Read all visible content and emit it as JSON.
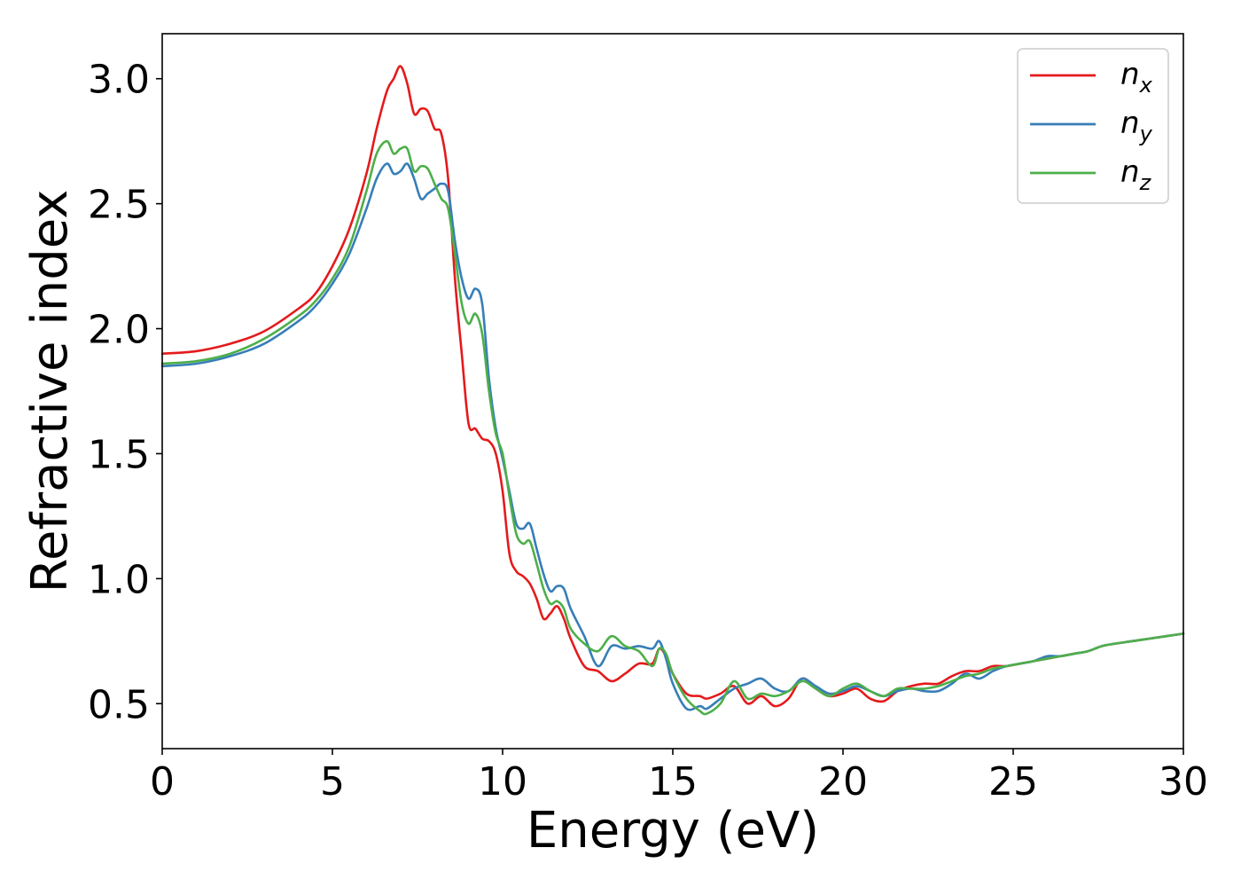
{
  "chart_data": {
    "type": "line",
    "title": "",
    "xlabel": "Energy (eV)",
    "ylabel": "Refractive index",
    "xlim": [
      0,
      30
    ],
    "ylim": [
      0.32,
      3.18
    ],
    "xticks": [
      0,
      5,
      10,
      15,
      20,
      25,
      30
    ],
    "xtick_labels": [
      "0",
      "5",
      "10",
      "15",
      "20",
      "25",
      "30"
    ],
    "yticks": [
      0.5,
      1.0,
      1.5,
      2.0,
      2.5,
      3.0
    ],
    "ytick_labels": [
      "0.5",
      "1.0",
      "1.5",
      "2.0",
      "2.5",
      "3.0"
    ],
    "grid": false,
    "legend_position": "top-right",
    "series": [
      {
        "name": "n_x",
        "legend": {
          "base": "n",
          "sub": "x"
        },
        "color": "#e41a1c",
        "x": [
          0,
          1,
          2,
          3,
          4,
          4.5,
          5,
          5.5,
          6,
          6.3,
          6.6,
          6.8,
          7.0,
          7.2,
          7.4,
          7.6,
          7.8,
          8.0,
          8.2,
          8.4,
          8.6,
          8.8,
          9.0,
          9.2,
          9.4,
          9.6,
          9.8,
          10.0,
          10.2,
          10.4,
          10.6,
          10.8,
          11.0,
          11.2,
          11.4,
          11.6,
          11.8,
          12.0,
          12.4,
          12.8,
          13.2,
          13.6,
          14.0,
          14.4,
          14.6,
          14.8,
          15.0,
          15.4,
          15.8,
          16.0,
          16.4,
          16.8,
          17.2,
          17.6,
          18.0,
          18.4,
          18.8,
          19.2,
          19.6,
          20.0,
          20.4,
          20.8,
          21.2,
          21.6,
          22.0,
          22.4,
          22.8,
          23.2,
          23.6,
          24.0,
          24.4,
          24.8,
          25.2,
          25.6,
          26.0,
          26.4,
          26.8,
          27.2,
          27.6,
          28.0,
          28.5,
          29.0,
          29.5,
          30.0
        ],
        "y": [
          1.9,
          1.91,
          1.94,
          1.99,
          2.08,
          2.14,
          2.25,
          2.4,
          2.62,
          2.8,
          2.95,
          3.0,
          3.05,
          2.98,
          2.86,
          2.88,
          2.87,
          2.8,
          2.78,
          2.6,
          2.2,
          1.9,
          1.62,
          1.6,
          1.56,
          1.55,
          1.5,
          1.35,
          1.1,
          1.03,
          1.01,
          0.98,
          0.92,
          0.84,
          0.86,
          0.89,
          0.84,
          0.76,
          0.65,
          0.63,
          0.59,
          0.62,
          0.66,
          0.66,
          0.72,
          0.69,
          0.62,
          0.54,
          0.53,
          0.52,
          0.54,
          0.57,
          0.5,
          0.53,
          0.49,
          0.52,
          0.6,
          0.56,
          0.53,
          0.54,
          0.56,
          0.52,
          0.51,
          0.55,
          0.57,
          0.58,
          0.58,
          0.61,
          0.63,
          0.63,
          0.65,
          0.65,
          0.66,
          0.67,
          0.68,
          0.69,
          0.7,
          0.71,
          0.73,
          0.74,
          0.75,
          0.76,
          0.77,
          0.78
        ]
      },
      {
        "name": "n_y",
        "legend": {
          "base": "n",
          "sub": "y"
        },
        "color": "#377eb8",
        "x": [
          0,
          1,
          2,
          3,
          4,
          4.5,
          5,
          5.5,
          6,
          6.3,
          6.6,
          6.8,
          7.0,
          7.2,
          7.4,
          7.6,
          7.8,
          8.0,
          8.2,
          8.4,
          8.6,
          8.8,
          9.0,
          9.2,
          9.4,
          9.6,
          9.8,
          10.0,
          10.2,
          10.4,
          10.6,
          10.8,
          11.0,
          11.2,
          11.4,
          11.6,
          11.8,
          12.0,
          12.4,
          12.8,
          13.2,
          13.6,
          14.0,
          14.4,
          14.6,
          14.8,
          15.0,
          15.4,
          15.8,
          16.0,
          16.4,
          16.8,
          17.2,
          17.6,
          18.0,
          18.4,
          18.8,
          19.2,
          19.6,
          20.0,
          20.4,
          20.8,
          21.2,
          21.6,
          22.0,
          22.4,
          22.8,
          23.2,
          23.6,
          24.0,
          24.4,
          24.8,
          25.2,
          25.6,
          26.0,
          26.4,
          26.8,
          27.2,
          27.6,
          28.0,
          28.5,
          29.0,
          29.5,
          30.0
        ],
        "y": [
          1.85,
          1.86,
          1.89,
          1.94,
          2.03,
          2.09,
          2.18,
          2.3,
          2.48,
          2.6,
          2.66,
          2.62,
          2.63,
          2.66,
          2.6,
          2.52,
          2.54,
          2.56,
          2.58,
          2.55,
          2.35,
          2.2,
          2.12,
          2.16,
          2.1,
          1.8,
          1.6,
          1.48,
          1.35,
          1.22,
          1.2,
          1.22,
          1.12,
          1.02,
          0.95,
          0.97,
          0.96,
          0.88,
          0.77,
          0.65,
          0.73,
          0.72,
          0.73,
          0.72,
          0.75,
          0.68,
          0.58,
          0.48,
          0.49,
          0.48,
          0.52,
          0.56,
          0.58,
          0.6,
          0.56,
          0.55,
          0.6,
          0.57,
          0.54,
          0.55,
          0.57,
          0.55,
          0.53,
          0.55,
          0.56,
          0.55,
          0.55,
          0.58,
          0.62,
          0.6,
          0.63,
          0.65,
          0.66,
          0.67,
          0.69,
          0.69,
          0.7,
          0.71,
          0.73,
          0.74,
          0.75,
          0.76,
          0.77,
          0.78
        ]
      },
      {
        "name": "n_z",
        "legend": {
          "base": "n",
          "sub": "z"
        },
        "color": "#4daf4a",
        "x": [
          0,
          1,
          2,
          3,
          4,
          4.5,
          5,
          5.5,
          6,
          6.3,
          6.6,
          6.8,
          7.0,
          7.2,
          7.4,
          7.6,
          7.8,
          8.0,
          8.2,
          8.4,
          8.6,
          8.8,
          9.0,
          9.2,
          9.4,
          9.6,
          9.8,
          10.0,
          10.2,
          10.4,
          10.6,
          10.8,
          11.0,
          11.2,
          11.4,
          11.6,
          11.8,
          12.0,
          12.4,
          12.8,
          13.2,
          13.6,
          14.0,
          14.4,
          14.6,
          14.8,
          15.0,
          15.4,
          15.8,
          16.0,
          16.4,
          16.8,
          17.2,
          17.6,
          18.0,
          18.4,
          18.8,
          19.2,
          19.6,
          20.0,
          20.4,
          20.8,
          21.2,
          21.6,
          22.0,
          22.4,
          22.8,
          23.2,
          23.6,
          24.0,
          24.4,
          24.8,
          25.2,
          25.6,
          26.0,
          26.4,
          26.8,
          27.2,
          27.6,
          28.0,
          28.5,
          29.0,
          29.5,
          30.0
        ],
        "y": [
          1.86,
          1.87,
          1.9,
          1.96,
          2.05,
          2.11,
          2.2,
          2.33,
          2.55,
          2.7,
          2.75,
          2.7,
          2.72,
          2.72,
          2.63,
          2.65,
          2.64,
          2.58,
          2.52,
          2.48,
          2.3,
          2.1,
          2.02,
          2.06,
          1.98,
          1.75,
          1.58,
          1.5,
          1.33,
          1.18,
          1.14,
          1.15,
          1.06,
          0.96,
          0.9,
          0.91,
          0.88,
          0.8,
          0.74,
          0.71,
          0.77,
          0.73,
          0.71,
          0.65,
          0.72,
          0.7,
          0.62,
          0.52,
          0.47,
          0.46,
          0.5,
          0.59,
          0.52,
          0.54,
          0.53,
          0.55,
          0.59,
          0.56,
          0.53,
          0.56,
          0.58,
          0.55,
          0.53,
          0.56,
          0.56,
          0.56,
          0.57,
          0.59,
          0.61,
          0.62,
          0.64,
          0.65,
          0.66,
          0.67,
          0.68,
          0.69,
          0.7,
          0.71,
          0.73,
          0.74,
          0.75,
          0.76,
          0.77,
          0.78
        ]
      }
    ]
  }
}
